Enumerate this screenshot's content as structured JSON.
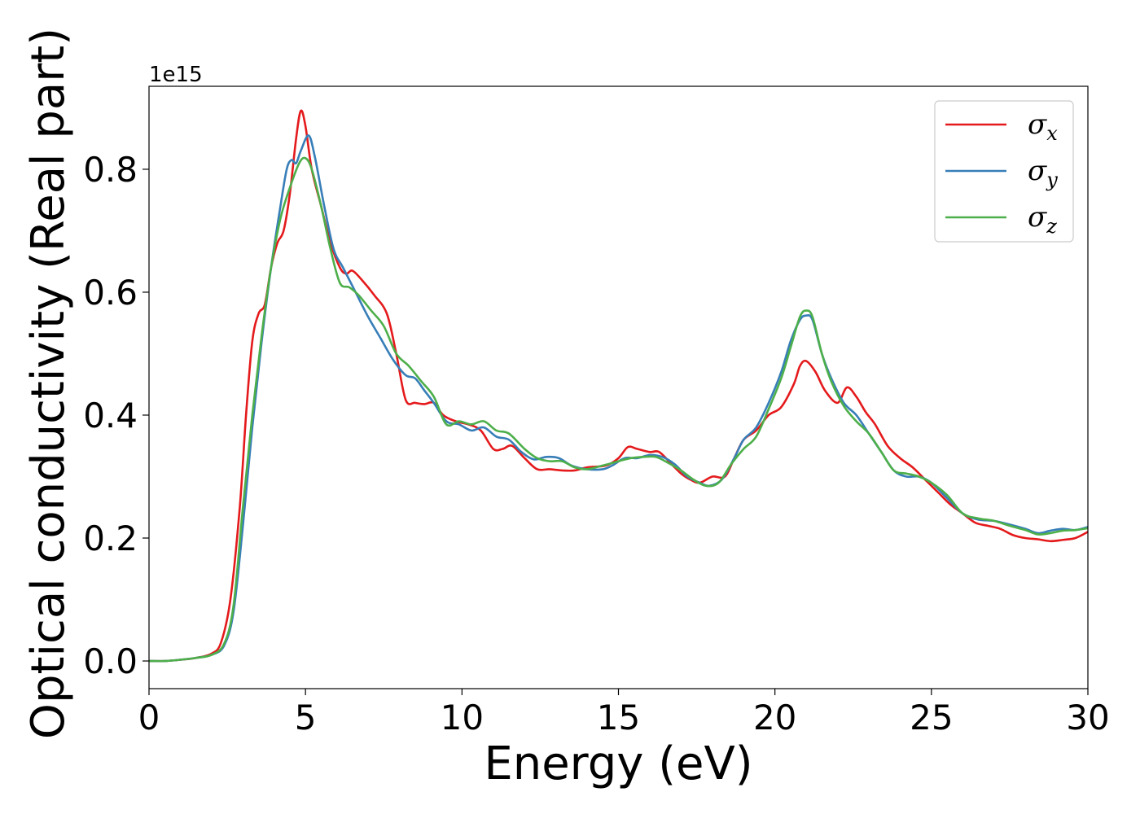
{
  "chart_data": {
    "type": "line",
    "title": "",
    "xlabel": "Energy (eV)",
    "ylabel": "Optical conductivity (Real part)",
    "y_offset_label": "1e15",
    "y_scale_factor": 1000000000000000.0,
    "xlim": [
      0,
      30
    ],
    "ylim": [
      -0.045,
      0.935
    ],
    "xticks": [
      0,
      5,
      10,
      15,
      20,
      25,
      30
    ],
    "xtick_labels": [
      "0",
      "5",
      "10",
      "15",
      "20",
      "25",
      "30"
    ],
    "yticks": [
      0.0,
      0.2,
      0.4,
      0.6,
      0.8
    ],
    "ytick_labels": [
      "0.0",
      "0.2",
      "0.4",
      "0.6",
      "0.8"
    ],
    "grid": false,
    "legend_position": "top-right",
    "series": [
      {
        "name": "σx",
        "symbol": "σ",
        "subscript": "x",
        "color": "#e41a1c",
        "points": [
          [
            0,
            0
          ],
          [
            0.5,
            0.0
          ],
          [
            1,
            0.002
          ],
          [
            1.5,
            0.005
          ],
          [
            2,
            0.012
          ],
          [
            2.3,
            0.03
          ],
          [
            2.6,
            0.1
          ],
          [
            2.9,
            0.25
          ],
          [
            3.1,
            0.4
          ],
          [
            3.3,
            0.52
          ],
          [
            3.5,
            0.565
          ],
          [
            3.7,
            0.58
          ],
          [
            3.9,
            0.64
          ],
          [
            4.1,
            0.68
          ],
          [
            4.3,
            0.7
          ],
          [
            4.5,
            0.76
          ],
          [
            4.7,
            0.85
          ],
          [
            4.85,
            0.895
          ],
          [
            5,
            0.87
          ],
          [
            5.2,
            0.8
          ],
          [
            5.5,
            0.74
          ],
          [
            5.8,
            0.68
          ],
          [
            6.1,
            0.64
          ],
          [
            6.3,
            0.63
          ],
          [
            6.5,
            0.635
          ],
          [
            6.8,
            0.62
          ],
          [
            7.2,
            0.595
          ],
          [
            7.6,
            0.565
          ],
          [
            7.9,
            0.5
          ],
          [
            8.2,
            0.425
          ],
          [
            8.5,
            0.42
          ],
          [
            8.8,
            0.418
          ],
          [
            9.1,
            0.42
          ],
          [
            9.4,
            0.4
          ],
          [
            9.8,
            0.39
          ],
          [
            10.2,
            0.385
          ],
          [
            10.6,
            0.375
          ],
          [
            11,
            0.345
          ],
          [
            11.3,
            0.345
          ],
          [
            11.6,
            0.35
          ],
          [
            12,
            0.33
          ],
          [
            12.4,
            0.312
          ],
          [
            12.8,
            0.312
          ],
          [
            13.2,
            0.31
          ],
          [
            13.6,
            0.31
          ],
          [
            14,
            0.315
          ],
          [
            14.6,
            0.318
          ],
          [
            15,
            0.33
          ],
          [
            15.3,
            0.348
          ],
          [
            15.6,
            0.345
          ],
          [
            16,
            0.34
          ],
          [
            16.3,
            0.34
          ],
          [
            16.7,
            0.32
          ],
          [
            17,
            0.305
          ],
          [
            17.3,
            0.295
          ],
          [
            17.6,
            0.29
          ],
          [
            18,
            0.3
          ],
          [
            18.4,
            0.3
          ],
          [
            18.7,
            0.33
          ],
          [
            19,
            0.36
          ],
          [
            19.4,
            0.375
          ],
          [
            19.8,
            0.4
          ],
          [
            20.2,
            0.413
          ],
          [
            20.6,
            0.45
          ],
          [
            20.8,
            0.48
          ],
          [
            21,
            0.488
          ],
          [
            21.3,
            0.47
          ],
          [
            21.6,
            0.44
          ],
          [
            22,
            0.42
          ],
          [
            22.3,
            0.445
          ],
          [
            22.6,
            0.43
          ],
          [
            22.9,
            0.405
          ],
          [
            23.2,
            0.385
          ],
          [
            23.6,
            0.35
          ],
          [
            24,
            0.33
          ],
          [
            24.4,
            0.315
          ],
          [
            24.8,
            0.295
          ],
          [
            25.2,
            0.275
          ],
          [
            25.6,
            0.255
          ],
          [
            26,
            0.24
          ],
          [
            26.4,
            0.225
          ],
          [
            26.8,
            0.22
          ],
          [
            27.2,
            0.215
          ],
          [
            27.6,
            0.205
          ],
          [
            28,
            0.2
          ],
          [
            28.4,
            0.198
          ],
          [
            28.8,
            0.195
          ],
          [
            29.2,
            0.197
          ],
          [
            29.6,
            0.2
          ],
          [
            30,
            0.21
          ]
        ]
      },
      {
        "name": "σy",
        "symbol": "σ",
        "subscript": "y",
        "color": "#377eb8",
        "points": [
          [
            0,
            0
          ],
          [
            0.5,
            0.0
          ],
          [
            1,
            0.002
          ],
          [
            1.5,
            0.005
          ],
          [
            2,
            0.01
          ],
          [
            2.4,
            0.025
          ],
          [
            2.7,
            0.08
          ],
          [
            3,
            0.22
          ],
          [
            3.3,
            0.38
          ],
          [
            3.6,
            0.52
          ],
          [
            3.9,
            0.64
          ],
          [
            4.2,
            0.74
          ],
          [
            4.4,
            0.8
          ],
          [
            4.55,
            0.815
          ],
          [
            4.7,
            0.81
          ],
          [
            4.85,
            0.83
          ],
          [
            5.1,
            0.855
          ],
          [
            5.3,
            0.82
          ],
          [
            5.6,
            0.74
          ],
          [
            5.9,
            0.67
          ],
          [
            6.2,
            0.64
          ],
          [
            6.6,
            0.6
          ],
          [
            7,
            0.56
          ],
          [
            7.4,
            0.525
          ],
          [
            7.8,
            0.49
          ],
          [
            8.2,
            0.465
          ],
          [
            8.5,
            0.46
          ],
          [
            8.8,
            0.44
          ],
          [
            9.1,
            0.42
          ],
          [
            9.5,
            0.39
          ],
          [
            9.9,
            0.385
          ],
          [
            10.3,
            0.375
          ],
          [
            10.7,
            0.38
          ],
          [
            11.1,
            0.365
          ],
          [
            11.5,
            0.36
          ],
          [
            11.9,
            0.34
          ],
          [
            12.3,
            0.328
          ],
          [
            12.7,
            0.332
          ],
          [
            13.1,
            0.33
          ],
          [
            13.5,
            0.318
          ],
          [
            14,
            0.312
          ],
          [
            14.5,
            0.312
          ],
          [
            14.8,
            0.318
          ],
          [
            15.2,
            0.33
          ],
          [
            15.6,
            0.33
          ],
          [
            16,
            0.335
          ],
          [
            16.4,
            0.332
          ],
          [
            16.8,
            0.32
          ],
          [
            17.2,
            0.3
          ],
          [
            17.6,
            0.29
          ],
          [
            17.9,
            0.285
          ],
          [
            18.3,
            0.295
          ],
          [
            18.7,
            0.33
          ],
          [
            19,
            0.36
          ],
          [
            19.4,
            0.38
          ],
          [
            19.8,
            0.42
          ],
          [
            20.2,
            0.47
          ],
          [
            20.5,
            0.52
          ],
          [
            20.8,
            0.555
          ],
          [
            21,
            0.562
          ],
          [
            21.2,
            0.555
          ],
          [
            21.5,
            0.5
          ],
          [
            21.8,
            0.46
          ],
          [
            22.2,
            0.42
          ],
          [
            22.6,
            0.4
          ],
          [
            23,
            0.37
          ],
          [
            23.4,
            0.34
          ],
          [
            23.8,
            0.31
          ],
          [
            24.2,
            0.3
          ],
          [
            24.6,
            0.3
          ],
          [
            25,
            0.29
          ],
          [
            25.5,
            0.265
          ],
          [
            26,
            0.24
          ],
          [
            26.5,
            0.23
          ],
          [
            27,
            0.228
          ],
          [
            27.5,
            0.222
          ],
          [
            28,
            0.215
          ],
          [
            28.4,
            0.208
          ],
          [
            28.8,
            0.212
          ],
          [
            29.2,
            0.215
          ],
          [
            29.6,
            0.213
          ],
          [
            30,
            0.218
          ]
        ]
      },
      {
        "name": "σz",
        "symbol": "σ",
        "subscript": "z",
        "color": "#4daf4a",
        "points": [
          [
            0,
            0
          ],
          [
            0.5,
            0.0
          ],
          [
            1,
            0.002
          ],
          [
            1.5,
            0.005
          ],
          [
            2,
            0.01
          ],
          [
            2.4,
            0.028
          ],
          [
            2.7,
            0.09
          ],
          [
            3,
            0.25
          ],
          [
            3.3,
            0.4
          ],
          [
            3.6,
            0.53
          ],
          [
            3.9,
            0.64
          ],
          [
            4.2,
            0.72
          ],
          [
            4.5,
            0.77
          ],
          [
            4.8,
            0.81
          ],
          [
            5,
            0.818
          ],
          [
            5.2,
            0.8
          ],
          [
            5.5,
            0.74
          ],
          [
            5.8,
            0.67
          ],
          [
            6.1,
            0.615
          ],
          [
            6.4,
            0.608
          ],
          [
            6.7,
            0.595
          ],
          [
            7.1,
            0.57
          ],
          [
            7.5,
            0.545
          ],
          [
            7.9,
            0.5
          ],
          [
            8.3,
            0.48
          ],
          [
            8.7,
            0.455
          ],
          [
            9.1,
            0.43
          ],
          [
            9.5,
            0.385
          ],
          [
            9.9,
            0.39
          ],
          [
            10.3,
            0.385
          ],
          [
            10.7,
            0.39
          ],
          [
            11.1,
            0.375
          ],
          [
            11.5,
            0.37
          ],
          [
            12,
            0.345
          ],
          [
            12.4,
            0.33
          ],
          [
            12.8,
            0.325
          ],
          [
            13.2,
            0.325
          ],
          [
            13.6,
            0.315
          ],
          [
            14,
            0.312
          ],
          [
            14.5,
            0.318
          ],
          [
            15,
            0.325
          ],
          [
            15.4,
            0.33
          ],
          [
            15.8,
            0.332
          ],
          [
            16.2,
            0.332
          ],
          [
            16.6,
            0.322
          ],
          [
            17,
            0.31
          ],
          [
            17.4,
            0.295
          ],
          [
            17.8,
            0.285
          ],
          [
            18.2,
            0.29
          ],
          [
            18.6,
            0.32
          ],
          [
            19,
            0.345
          ],
          [
            19.4,
            0.365
          ],
          [
            19.8,
            0.41
          ],
          [
            20.2,
            0.46
          ],
          [
            20.5,
            0.51
          ],
          [
            20.8,
            0.56
          ],
          [
            21,
            0.57
          ],
          [
            21.2,
            0.56
          ],
          [
            21.5,
            0.5
          ],
          [
            21.8,
            0.455
          ],
          [
            22.2,
            0.415
          ],
          [
            22.6,
            0.39
          ],
          [
            23,
            0.37
          ],
          [
            23.4,
            0.34
          ],
          [
            23.8,
            0.31
          ],
          [
            24.2,
            0.305
          ],
          [
            24.6,
            0.3
          ],
          [
            25,
            0.29
          ],
          [
            25.5,
            0.27
          ],
          [
            26,
            0.24
          ],
          [
            26.5,
            0.232
          ],
          [
            27,
            0.228
          ],
          [
            27.5,
            0.22
          ],
          [
            28,
            0.213
          ],
          [
            28.4,
            0.206
          ],
          [
            28.8,
            0.208
          ],
          [
            29.2,
            0.212
          ],
          [
            29.6,
            0.213
          ],
          [
            30,
            0.216
          ]
        ]
      }
    ]
  }
}
